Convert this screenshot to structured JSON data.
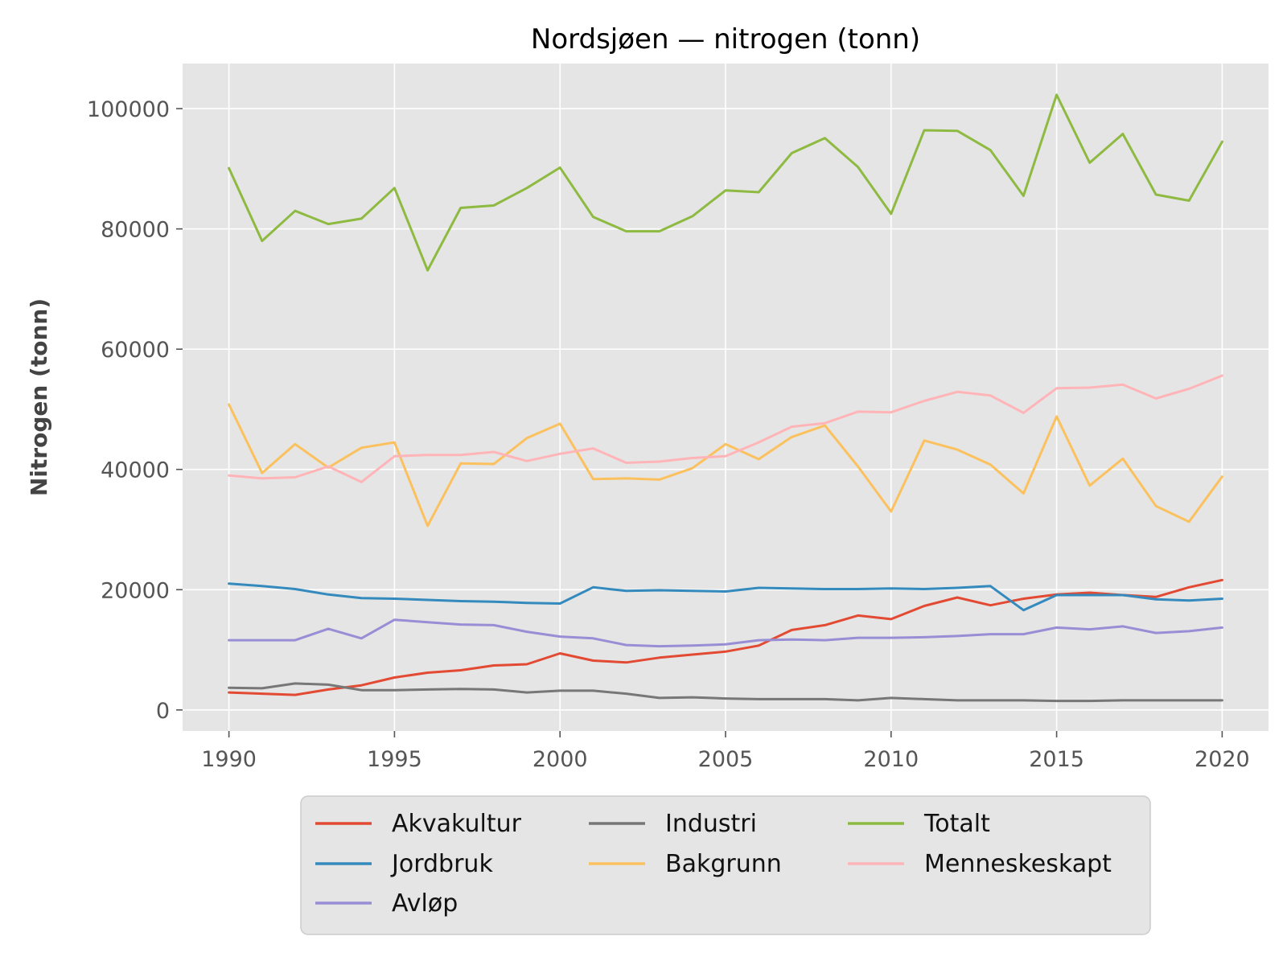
{
  "chart_data": {
    "type": "line",
    "title": "Nordsjøen — nitrogen (tonn)",
    "xlabel": "",
    "ylabel": "Nitrogen (tonn)",
    "xlim": [
      1988.6,
      2021.4
    ],
    "ylim": [
      -3500,
      107500
    ],
    "xticks": [
      1990,
      1995,
      2000,
      2005,
      2010,
      2015,
      2020
    ],
    "yticks": [
      0,
      20000,
      40000,
      60000,
      80000,
      100000
    ],
    "grid": true,
    "legend_position": "bottom-center",
    "x": [
      1990,
      1991,
      1992,
      1993,
      1994,
      1995,
      1996,
      1997,
      1998,
      1999,
      2000,
      2001,
      2002,
      2003,
      2004,
      2005,
      2006,
      2007,
      2008,
      2009,
      2010,
      2011,
      2012,
      2013,
      2014,
      2015,
      2016,
      2017,
      2018,
      2019,
      2020
    ],
    "series": [
      {
        "name": "Akvakultur",
        "color": "#E24A33",
        "values": [
          2900,
          2700,
          2500,
          3400,
          4100,
          5400,
          6200,
          6600,
          7400,
          7600,
          9400,
          8200,
          7900,
          8700,
          9200,
          9700,
          10700,
          13300,
          14100,
          15700,
          15100,
          17300,
          18700,
          17400,
          18500,
          19200,
          19500,
          19100,
          18800,
          20400,
          21600
        ]
      },
      {
        "name": "Jordbruk",
        "color": "#348ABD",
        "values": [
          21000,
          20600,
          20100,
          19200,
          18600,
          18500,
          18300,
          18100,
          18000,
          17800,
          17700,
          20400,
          19800,
          19900,
          19800,
          19700,
          20300,
          20200,
          20100,
          20100,
          20200,
          20100,
          20300,
          20600,
          16600,
          19100,
          19100,
          19100,
          18400,
          18200,
          18500
        ]
      },
      {
        "name": "Avløp",
        "color": "#988ED5",
        "values": [
          11600,
          11600,
          11600,
          13500,
          11900,
          15000,
          14600,
          14200,
          14100,
          13000,
          12200,
          11900,
          10800,
          10600,
          10700,
          10900,
          11600,
          11700,
          11600,
          12000,
          12000,
          12100,
          12300,
          12600,
          12600,
          13700,
          13400,
          13900,
          12800,
          13100,
          13700
        ]
      },
      {
        "name": "Industri",
        "color": "#777777",
        "values": [
          3700,
          3600,
          4400,
          4200,
          3300,
          3300,
          3400,
          3500,
          3400,
          2900,
          3200,
          3200,
          2700,
          2000,
          2100,
          1900,
          1800,
          1800,
          1800,
          1600,
          2000,
          1800,
          1600,
          1600,
          1600,
          1500,
          1500,
          1600,
          1600,
          1600,
          1600
        ]
      },
      {
        "name": "Bakgrunn",
        "color": "#FBC15E",
        "values": [
          50800,
          39400,
          44200,
          40300,
          43600,
          44500,
          30600,
          41000,
          40900,
          45200,
          47600,
          38400,
          38500,
          38300,
          40200,
          44200,
          41700,
          45400,
          47300,
          40500,
          33000,
          44800,
          43300,
          40800,
          36000,
          48800,
          37300,
          41800,
          33900,
          31300,
          38800
        ]
      },
      {
        "name": "Totalt",
        "color": "#8EBA42",
        "values": [
          90100,
          78000,
          83000,
          80800,
          81700,
          86800,
          73100,
          83500,
          83900,
          86800,
          90200,
          82000,
          79600,
          79600,
          82100,
          86400,
          86100,
          92600,
          95100,
          90300,
          82500,
          96400,
          96300,
          93100,
          85500,
          102300,
          91000,
          95800,
          85700,
          84700,
          94500
        ]
      },
      {
        "name": "Menneskeskapt",
        "color": "#FFB5B8",
        "values": [
          39000,
          38500,
          38700,
          40500,
          37900,
          42200,
          42400,
          42400,
          42900,
          41400,
          42600,
          43500,
          41100,
          41300,
          41900,
          42200,
          44500,
          47100,
          47700,
          49600,
          49500,
          51400,
          52900,
          52300,
          49400,
          53500,
          53600,
          54100,
          51800,
          53400,
          55600
        ]
      }
    ],
    "legend_columns": [
      [
        "Akvakultur",
        "Jordbruk",
        "Avløp"
      ],
      [
        "Industri",
        "Bakgrunn"
      ],
      [
        "Totalt",
        "Menneskeskapt"
      ]
    ]
  }
}
